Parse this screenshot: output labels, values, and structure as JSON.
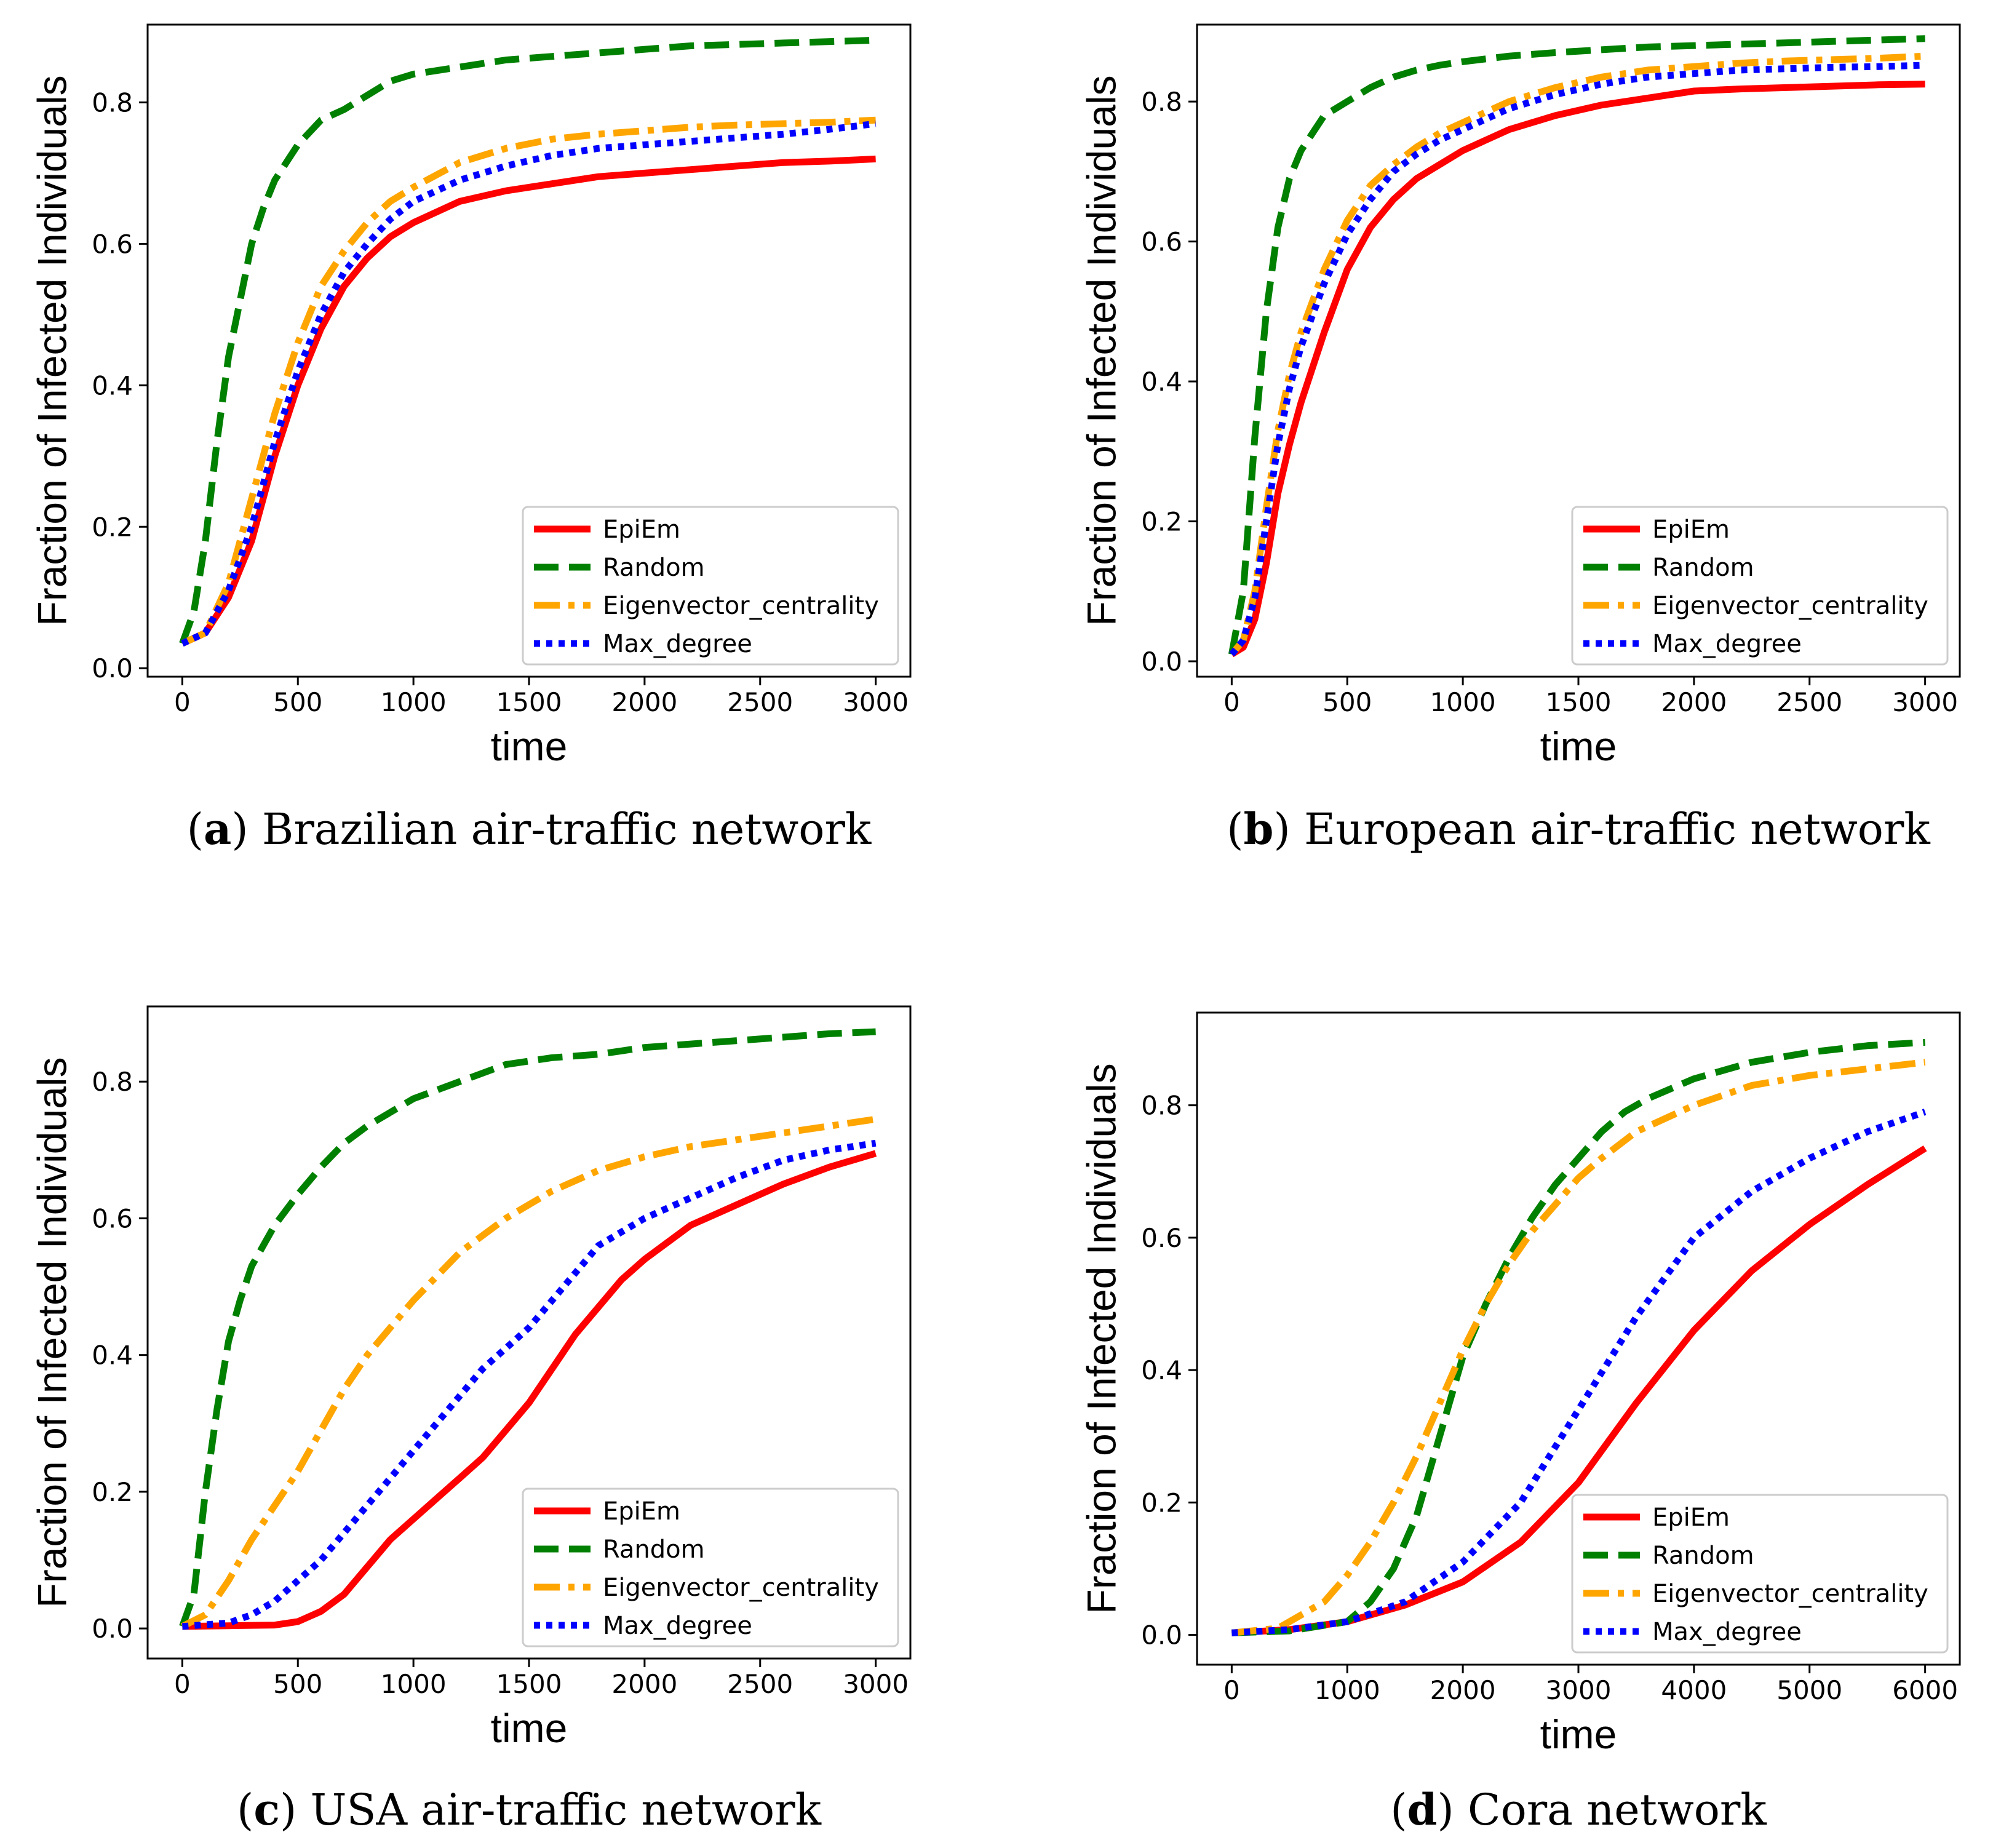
{
  "figure": {
    "colors": {
      "EpiEm": "#ff0000",
      "Random": "#008000",
      "Eigenvector_centrality": "#ffa500",
      "Max_degree": "#0000ff"
    }
  },
  "chart_data": [
    {
      "type": "line",
      "panel_letter": "a",
      "caption_text": "Brazilian air-traffic network",
      "xlabel": "time",
      "ylabel": "Fraction of Infected Individuals",
      "xlim": [
        -150,
        3150
      ],
      "ylim": [
        -0.012,
        0.91
      ],
      "xticks": [
        0,
        500,
        1000,
        1500,
        2000,
        2500,
        3000
      ],
      "yticks": [
        0.0,
        0.2,
        0.4,
        0.6,
        0.8
      ],
      "ytick_labels": [
        "0.0",
        "0.2",
        "0.4",
        "0.6",
        "0.8"
      ],
      "legend_location": "lower-right",
      "series": [
        {
          "name": "EpiEm",
          "x": [
            0,
            100,
            200,
            300,
            400,
            500,
            600,
            700,
            800,
            900,
            1000,
            1200,
            1400,
            1600,
            1800,
            2000,
            2200,
            2400,
            2600,
            2800,
            3000
          ],
          "values": [
            0.035,
            0.05,
            0.1,
            0.18,
            0.3,
            0.4,
            0.48,
            0.54,
            0.58,
            0.61,
            0.63,
            0.66,
            0.675,
            0.685,
            0.695,
            0.7,
            0.705,
            0.71,
            0.715,
            0.717,
            0.72
          ]
        },
        {
          "name": "Random",
          "x": [
            0,
            50,
            100,
            150,
            200,
            250,
            300,
            350,
            400,
            500,
            600,
            700,
            800,
            900,
            1000,
            1200,
            1400,
            1600,
            1800,
            2000,
            2200,
            2400,
            2600,
            2800,
            3000
          ],
          "values": [
            0.035,
            0.08,
            0.18,
            0.32,
            0.44,
            0.52,
            0.6,
            0.65,
            0.69,
            0.74,
            0.775,
            0.79,
            0.81,
            0.83,
            0.84,
            0.85,
            0.86,
            0.865,
            0.87,
            0.875,
            0.88,
            0.882,
            0.884,
            0.886,
            0.888
          ]
        },
        {
          "name": "Eigenvector_centrality",
          "x": [
            0,
            100,
            200,
            300,
            400,
            500,
            600,
            700,
            800,
            900,
            1000,
            1200,
            1400,
            1600,
            1800,
            2000,
            2200,
            2400,
            2600,
            2800,
            3000
          ],
          "values": [
            0.035,
            0.05,
            0.12,
            0.24,
            0.36,
            0.46,
            0.54,
            0.59,
            0.63,
            0.66,
            0.68,
            0.715,
            0.735,
            0.748,
            0.755,
            0.76,
            0.765,
            0.768,
            0.77,
            0.772,
            0.775
          ]
        },
        {
          "name": "Max_degree",
          "x": [
            0,
            100,
            200,
            300,
            400,
            500,
            600,
            700,
            800,
            900,
            1000,
            1200,
            1400,
            1600,
            1800,
            2000,
            2200,
            2400,
            2600,
            2800,
            3000
          ],
          "values": [
            0.035,
            0.05,
            0.11,
            0.2,
            0.32,
            0.42,
            0.5,
            0.56,
            0.6,
            0.635,
            0.66,
            0.69,
            0.71,
            0.725,
            0.735,
            0.74,
            0.745,
            0.75,
            0.755,
            0.762,
            0.77
          ]
        }
      ]
    },
    {
      "type": "line",
      "panel_letter": "b",
      "caption_text": "European air-traffic network",
      "xlabel": "time",
      "ylabel": "Fraction of Infected Individuals",
      "xlim": [
        -150,
        3150
      ],
      "ylim": [
        -0.022,
        0.91
      ],
      "xticks": [
        0,
        500,
        1000,
        1500,
        2000,
        2500,
        3000
      ],
      "yticks": [
        0.0,
        0.2,
        0.4,
        0.6,
        0.8
      ],
      "ytick_labels": [
        "0.0",
        "0.2",
        "0.4",
        "0.6",
        "0.8"
      ],
      "legend_location": "lower-right",
      "series": [
        {
          "name": "EpiEm",
          "x": [
            0,
            50,
            100,
            150,
            200,
            250,
            300,
            400,
            500,
            600,
            700,
            800,
            900,
            1000,
            1200,
            1400,
            1600,
            1800,
            2000,
            2200,
            2400,
            2600,
            2800,
            3000
          ],
          "values": [
            0.01,
            0.02,
            0.06,
            0.14,
            0.24,
            0.31,
            0.37,
            0.47,
            0.56,
            0.62,
            0.66,
            0.69,
            0.71,
            0.73,
            0.76,
            0.78,
            0.795,
            0.805,
            0.815,
            0.818,
            0.82,
            0.822,
            0.824,
            0.825
          ]
        },
        {
          "name": "Random",
          "x": [
            0,
            50,
            100,
            150,
            200,
            250,
            300,
            400,
            500,
            600,
            700,
            800,
            900,
            1000,
            1200,
            1400,
            1600,
            1800,
            2000,
            2200,
            2400,
            2600,
            2800,
            3000
          ],
          "values": [
            0.01,
            0.1,
            0.32,
            0.5,
            0.62,
            0.69,
            0.73,
            0.78,
            0.8,
            0.82,
            0.835,
            0.845,
            0.852,
            0.857,
            0.865,
            0.87,
            0.874,
            0.878,
            0.88,
            0.882,
            0.884,
            0.886,
            0.888,
            0.89
          ]
        },
        {
          "name": "Eigenvector_centrality",
          "x": [
            0,
            50,
            100,
            150,
            200,
            250,
            300,
            400,
            500,
            600,
            700,
            800,
            900,
            1000,
            1200,
            1400,
            1600,
            1800,
            2000,
            2200,
            2400,
            2600,
            2800,
            3000
          ],
          "values": [
            0.01,
            0.03,
            0.1,
            0.22,
            0.33,
            0.41,
            0.47,
            0.56,
            0.63,
            0.68,
            0.71,
            0.735,
            0.755,
            0.77,
            0.8,
            0.82,
            0.835,
            0.845,
            0.85,
            0.855,
            0.858,
            0.86,
            0.862,
            0.865
          ]
        },
        {
          "name": "Max_degree",
          "x": [
            0,
            50,
            100,
            150,
            200,
            250,
            300,
            400,
            500,
            600,
            700,
            800,
            900,
            1000,
            1200,
            1400,
            1600,
            1800,
            2000,
            2200,
            2400,
            2600,
            2800,
            3000
          ],
          "values": [
            0.01,
            0.03,
            0.09,
            0.2,
            0.31,
            0.39,
            0.45,
            0.54,
            0.61,
            0.66,
            0.7,
            0.725,
            0.745,
            0.76,
            0.79,
            0.81,
            0.825,
            0.835,
            0.84,
            0.845,
            0.847,
            0.849,
            0.85,
            0.852
          ]
        }
      ]
    },
    {
      "type": "line",
      "panel_letter": "c",
      "caption_text": "USA air-traffic network",
      "xlabel": "time",
      "ylabel": "Fraction of Infected Individuals",
      "xlim": [
        -150,
        3150
      ],
      "ylim": [
        -0.044,
        0.91
      ],
      "xticks": [
        0,
        500,
        1000,
        1500,
        2000,
        2500,
        3000
      ],
      "yticks": [
        0.0,
        0.2,
        0.4,
        0.6,
        0.8
      ],
      "ytick_labels": [
        "0.0",
        "0.2",
        "0.4",
        "0.6",
        "0.8"
      ],
      "legend_location": "lower-right",
      "series": [
        {
          "name": "EpiEm",
          "x": [
            0,
            200,
            400,
            500,
            600,
            700,
            800,
            900,
            1000,
            1100,
            1200,
            1300,
            1400,
            1500,
            1600,
            1700,
            1800,
            1900,
            2000,
            2200,
            2400,
            2600,
            2800,
            3000
          ],
          "values": [
            0.003,
            0.004,
            0.005,
            0.01,
            0.025,
            0.05,
            0.09,
            0.13,
            0.16,
            0.19,
            0.22,
            0.25,
            0.29,
            0.33,
            0.38,
            0.43,
            0.47,
            0.51,
            0.54,
            0.59,
            0.62,
            0.65,
            0.675,
            0.695
          ]
        },
        {
          "name": "Random",
          "x": [
            0,
            50,
            100,
            150,
            200,
            250,
            300,
            400,
            500,
            600,
            700,
            800,
            900,
            1000,
            1200,
            1400,
            1600,
            1800,
            2000,
            2200,
            2400,
            2600,
            2800,
            3000
          ],
          "values": [
            0.003,
            0.05,
            0.2,
            0.32,
            0.42,
            0.48,
            0.53,
            0.59,
            0.635,
            0.675,
            0.71,
            0.735,
            0.755,
            0.775,
            0.8,
            0.825,
            0.835,
            0.84,
            0.85,
            0.855,
            0.86,
            0.865,
            0.87,
            0.873
          ]
        },
        {
          "name": "Eigenvector_centrality",
          "x": [
            0,
            100,
            200,
            300,
            400,
            500,
            600,
            700,
            800,
            900,
            1000,
            1200,
            1400,
            1600,
            1800,
            2000,
            2200,
            2400,
            2600,
            2800,
            3000
          ],
          "values": [
            0.003,
            0.02,
            0.07,
            0.13,
            0.18,
            0.23,
            0.29,
            0.35,
            0.4,
            0.44,
            0.48,
            0.55,
            0.6,
            0.64,
            0.67,
            0.69,
            0.705,
            0.715,
            0.725,
            0.735,
            0.745
          ]
        },
        {
          "name": "Max_degree",
          "x": [
            0,
            200,
            300,
            400,
            500,
            600,
            700,
            800,
            900,
            1000,
            1100,
            1200,
            1300,
            1400,
            1500,
            1600,
            1700,
            1800,
            2000,
            2200,
            2400,
            2600,
            2800,
            3000
          ],
          "values": [
            0.003,
            0.008,
            0.02,
            0.04,
            0.07,
            0.1,
            0.14,
            0.18,
            0.22,
            0.26,
            0.3,
            0.34,
            0.38,
            0.41,
            0.44,
            0.48,
            0.52,
            0.56,
            0.6,
            0.63,
            0.66,
            0.685,
            0.7,
            0.71
          ]
        }
      ]
    },
    {
      "type": "line",
      "panel_letter": "d",
      "caption_text": "Cora network",
      "xlabel": "time",
      "ylabel": "Fraction of Infected Individuals",
      "xlim": [
        -300,
        6300
      ],
      "ylim": [
        -0.045,
        0.94
      ],
      "xticks": [
        0,
        1000,
        2000,
        3000,
        4000,
        5000,
        6000
      ],
      "yticks": [
        0.0,
        0.2,
        0.4,
        0.6,
        0.8
      ],
      "ytick_labels": [
        "0.0",
        "0.2",
        "0.4",
        "0.6",
        "0.8"
      ],
      "legend_location": "lower-right",
      "series": [
        {
          "name": "EpiEm",
          "x": [
            0,
            500,
            1000,
            1500,
            2000,
            2500,
            3000,
            3500,
            4000,
            4500,
            5000,
            5500,
            6000
          ],
          "values": [
            0.003,
            0.008,
            0.02,
            0.045,
            0.08,
            0.14,
            0.23,
            0.35,
            0.46,
            0.55,
            0.62,
            0.68,
            0.735
          ]
        },
        {
          "name": "Random",
          "x": [
            0,
            500,
            1000,
            1200,
            1400,
            1600,
            1800,
            2000,
            2200,
            2400,
            2600,
            2800,
            3000,
            3200,
            3400,
            3600,
            4000,
            4500,
            5000,
            5500,
            6000
          ],
          "values": [
            0.003,
            0.006,
            0.02,
            0.05,
            0.1,
            0.18,
            0.3,
            0.42,
            0.5,
            0.57,
            0.63,
            0.68,
            0.72,
            0.76,
            0.79,
            0.81,
            0.84,
            0.865,
            0.88,
            0.89,
            0.895
          ]
        },
        {
          "name": "Eigenvector_centrality",
          "x": [
            0,
            400,
            800,
            1000,
            1200,
            1400,
            1600,
            1800,
            2000,
            2200,
            2400,
            2600,
            2800,
            3000,
            3200,
            3500,
            4000,
            4500,
            5000,
            5500,
            6000
          ],
          "values": [
            0.003,
            0.01,
            0.05,
            0.09,
            0.14,
            0.2,
            0.27,
            0.35,
            0.43,
            0.5,
            0.56,
            0.61,
            0.65,
            0.69,
            0.72,
            0.76,
            0.8,
            0.83,
            0.845,
            0.855,
            0.865
          ]
        },
        {
          "name": "Max_degree",
          "x": [
            0,
            500,
            1000,
            1500,
            2000,
            2500,
            3000,
            3500,
            4000,
            4500,
            5000,
            5500,
            6000
          ],
          "values": [
            0.003,
            0.008,
            0.02,
            0.05,
            0.11,
            0.2,
            0.34,
            0.48,
            0.6,
            0.67,
            0.72,
            0.76,
            0.79
          ]
        }
      ]
    }
  ]
}
